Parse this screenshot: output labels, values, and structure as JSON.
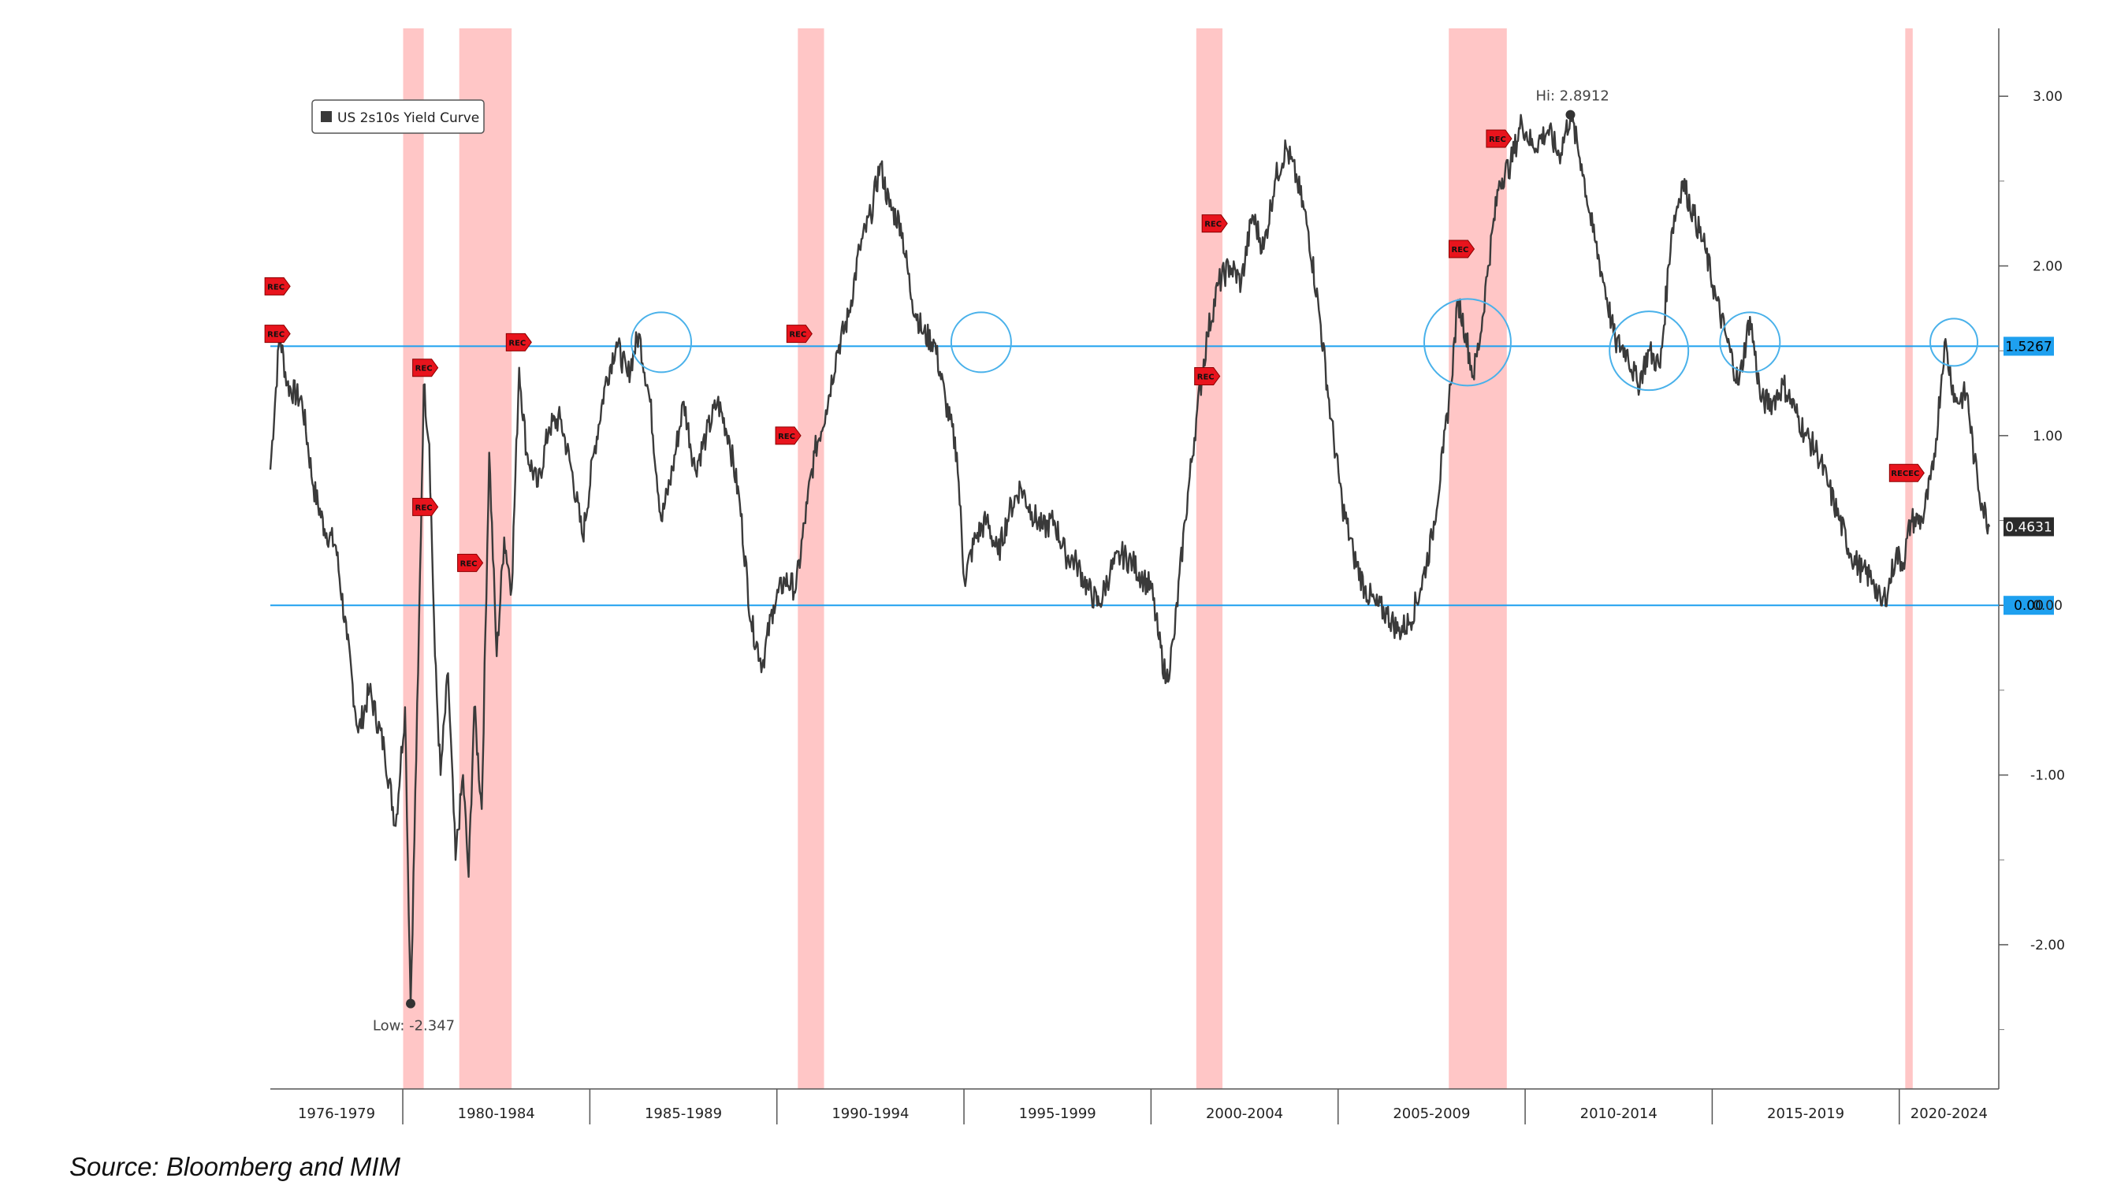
{
  "chart_data": {
    "type": "line",
    "legend": "US 2s10s Yield Curve",
    "legend_position": "top-left",
    "series": [
      {
        "name": "US 2s10s Yield Curve",
        "color": "#3a3a3a",
        "points": [
          [
            1976.45,
            0.8
          ],
          [
            1976.7,
            1.6
          ],
          [
            1976.9,
            1.3
          ],
          [
            1977.3,
            1.2
          ],
          [
            1977.6,
            0.7
          ],
          [
            1977.9,
            0.45
          ],
          [
            1978.2,
            0.35
          ],
          [
            1978.5,
            -0.2
          ],
          [
            1978.8,
            -0.75
          ],
          [
            1979.1,
            -0.5
          ],
          [
            1979.5,
            -0.85
          ],
          [
            1979.8,
            -1.3
          ],
          [
            1980.05,
            -0.6
          ],
          [
            1980.2,
            -2.347
          ],
          [
            1980.4,
            -0.4
          ],
          [
            1980.55,
            1.3
          ],
          [
            1980.7,
            0.95
          ],
          [
            1980.85,
            -0.3
          ],
          [
            1981.0,
            -1.0
          ],
          [
            1981.2,
            -0.4
          ],
          [
            1981.4,
            -1.5
          ],
          [
            1981.6,
            -1.0
          ],
          [
            1981.75,
            -1.6
          ],
          [
            1981.9,
            -0.6
          ],
          [
            1982.1,
            -1.2
          ],
          [
            1982.3,
            0.9
          ],
          [
            1982.5,
            -0.3
          ],
          [
            1982.7,
            0.4
          ],
          [
            1982.9,
            0.1
          ],
          [
            1983.1,
            1.4
          ],
          [
            1983.3,
            0.9
          ],
          [
            1983.6,
            0.7
          ],
          [
            1983.9,
            1.05
          ],
          [
            1984.2,
            1.1
          ],
          [
            1984.5,
            0.8
          ],
          [
            1984.8,
            0.4
          ],
          [
            1985.1,
            0.9
          ],
          [
            1985.4,
            1.3
          ],
          [
            1985.7,
            1.55
          ],
          [
            1986.0,
            1.35
          ],
          [
            1986.3,
            1.6
          ],
          [
            1986.6,
            1.2
          ],
          [
            1986.9,
            0.5
          ],
          [
            1987.2,
            0.8
          ],
          [
            1987.5,
            1.2
          ],
          [
            1987.8,
            0.8
          ],
          [
            1988.1,
            1.0
          ],
          [
            1988.4,
            1.2
          ],
          [
            1988.7,
            1.0
          ],
          [
            1989.0,
            0.6
          ],
          [
            1989.3,
            -0.1
          ],
          [
            1989.6,
            -0.35
          ],
          [
            1989.9,
            0.0
          ],
          [
            1990.2,
            0.15
          ],
          [
            1990.5,
            0.1
          ],
          [
            1990.8,
            0.6
          ],
          [
            1991.0,
            0.9
          ],
          [
            1991.3,
            1.15
          ],
          [
            1991.6,
            1.5
          ],
          [
            1991.9,
            1.7
          ],
          [
            1992.2,
            2.1
          ],
          [
            1992.5,
            2.3
          ],
          [
            1992.75,
            2.6
          ],
          [
            1993.0,
            2.35
          ],
          [
            1993.3,
            2.25
          ],
          [
            1993.6,
            1.8
          ],
          [
            1993.9,
            1.6
          ],
          [
            1994.2,
            1.55
          ],
          [
            1994.5,
            1.2
          ],
          [
            1994.8,
            0.9
          ],
          [
            1995.0,
            0.15
          ],
          [
            1995.3,
            0.4
          ],
          [
            1995.6,
            0.5
          ],
          [
            1995.9,
            0.3
          ],
          [
            1996.2,
            0.55
          ],
          [
            1996.5,
            0.7
          ],
          [
            1996.8,
            0.55
          ],
          [
            1997.1,
            0.45
          ],
          [
            1997.4,
            0.5
          ],
          [
            1997.7,
            0.3
          ],
          [
            1998.0,
            0.25
          ],
          [
            1998.3,
            0.1
          ],
          [
            1998.6,
            0.0
          ],
          [
            1998.9,
            0.2
          ],
          [
            1999.2,
            0.3
          ],
          [
            1999.5,
            0.25
          ],
          [
            1999.8,
            0.15
          ],
          [
            2000.0,
            0.1
          ],
          [
            2000.2,
            -0.2
          ],
          [
            2000.4,
            -0.45
          ],
          [
            2000.6,
            -0.2
          ],
          [
            2000.9,
            0.5
          ],
          [
            2001.2,
            1.1
          ],
          [
            2001.5,
            1.6
          ],
          [
            2001.8,
            1.9
          ],
          [
            2002.1,
            2.0
          ],
          [
            2002.4,
            1.9
          ],
          [
            2002.7,
            2.3
          ],
          [
            2003.0,
            2.1
          ],
          [
            2003.3,
            2.5
          ],
          [
            2003.6,
            2.7
          ],
          [
            2003.9,
            2.5
          ],
          [
            2004.2,
            2.2
          ],
          [
            2004.5,
            1.7
          ],
          [
            2004.8,
            1.1
          ],
          [
            2005.1,
            0.6
          ],
          [
            2005.4,
            0.3
          ],
          [
            2005.7,
            0.1
          ],
          [
            2006.0,
            0.0
          ],
          [
            2006.3,
            -0.05
          ],
          [
            2006.6,
            -0.15
          ],
          [
            2006.9,
            -0.1
          ],
          [
            2007.2,
            0.1
          ],
          [
            2007.5,
            0.4
          ],
          [
            2007.8,
            0.9
          ],
          [
            2008.0,
            1.3
          ],
          [
            2008.2,
            1.8
          ],
          [
            2008.4,
            1.6
          ],
          [
            2008.6,
            1.35
          ],
          [
            2008.8,
            1.6
          ],
          [
            2009.0,
            2.0
          ],
          [
            2009.3,
            2.5
          ],
          [
            2009.6,
            2.6
          ],
          [
            2009.9,
            2.85
          ],
          [
            2010.2,
            2.7
          ],
          [
            2010.6,
            2.8
          ],
          [
            2010.9,
            2.65
          ],
          [
            2011.2,
            2.89
          ],
          [
            2011.5,
            2.6
          ],
          [
            2011.8,
            2.2
          ],
          [
            2012.1,
            1.9
          ],
          [
            2012.4,
            1.55
          ],
          [
            2012.7,
            1.5
          ],
          [
            2013.0,
            1.3
          ],
          [
            2013.3,
            1.5
          ],
          [
            2013.6,
            1.4
          ],
          [
            2013.9,
            2.2
          ],
          [
            2014.2,
            2.5
          ],
          [
            2014.5,
            2.3
          ],
          [
            2014.8,
            2.1
          ],
          [
            2015.1,
            1.8
          ],
          [
            2015.4,
            1.55
          ],
          [
            2015.7,
            1.3
          ],
          [
            2016.0,
            1.7
          ],
          [
            2016.3,
            1.2
          ],
          [
            2016.6,
            1.2
          ],
          [
            2016.9,
            1.3
          ],
          [
            2017.2,
            1.15
          ],
          [
            2017.5,
            1.0
          ],
          [
            2017.8,
            0.9
          ],
          [
            2018.1,
            0.7
          ],
          [
            2018.4,
            0.5
          ],
          [
            2018.7,
            0.3
          ],
          [
            2019.0,
            0.2
          ],
          [
            2019.3,
            0.15
          ],
          [
            2019.5,
            0.0
          ],
          [
            2019.7,
            0.1
          ],
          [
            2019.9,
            0.3
          ],
          [
            2020.1,
            0.25
          ],
          [
            2020.3,
            0.5
          ],
          [
            2020.6,
            0.5
          ],
          [
            2020.9,
            0.8
          ],
          [
            2021.2,
            1.55
          ],
          [
            2021.5,
            1.2
          ],
          [
            2021.8,
            1.25
          ],
          [
            2022.0,
            0.85
          ],
          [
            2022.2,
            0.6
          ],
          [
            2022.4,
            0.4631
          ]
        ]
      }
    ],
    "y_ticks": [
      "3.00",
      "2.00",
      "1.00",
      "0.00",
      "-1.00",
      "-2.00"
    ],
    "ylim": [
      -2.85,
      3.4
    ],
    "xlim": [
      1976.45,
      2022.65
    ],
    "x_period_labels": [
      "1976-1979",
      "1980-1984",
      "1985-1989",
      "1990-1994",
      "1995-1999",
      "2000-2004",
      "2005-2009",
      "2010-2014",
      "2015-2019",
      "2020-2024"
    ],
    "x_period_separators": [
      1979.99,
      1984.99,
      1989.99,
      1994.99,
      1999.99,
      2004.99,
      2009.99,
      2014.99,
      2019.99
    ],
    "recession_bands": [
      [
        1980.0,
        1980.55
      ],
      [
        1981.5,
        1982.9
      ],
      [
        1990.55,
        1991.25
      ],
      [
        2001.2,
        2001.9
      ],
      [
        2007.95,
        2009.5
      ],
      [
        2020.15,
        2020.35
      ]
    ],
    "reference_lines": [
      {
        "value": 1.5267,
        "label": "1.5267",
        "color": "#1ea0ef"
      },
      {
        "value": 0.0,
        "label": "0.00",
        "color": "#1ea0ef"
      }
    ],
    "last_value": {
      "value": 0.4631,
      "label": "0.4631"
    },
    "annotations": [
      {
        "text": "Hi: 2.8912",
        "x": 2011.2,
        "y": 2.8912
      },
      {
        "text": "Low: -2.347",
        "x": 1980.2,
        "y": -2.347
      }
    ],
    "circles": [
      {
        "x": 1986.9,
        "y": 1.55
      },
      {
        "x": 1995.45,
        "y": 1.55
      },
      {
        "x": 2008.45,
        "y": 1.55
      },
      {
        "x": 2013.3,
        "y": 1.5
      },
      {
        "x": 2016.0,
        "y": 1.55
      },
      {
        "x": 2021.45,
        "y": 1.55
      }
    ],
    "rec_markers": [
      {
        "label": "REC",
        "x": 1976.6,
        "y": 1.88
      },
      {
        "label": "REC",
        "x": 1976.6,
        "y": 1.6
      },
      {
        "label": "REC",
        "x": 1980.55,
        "y": 1.4
      },
      {
        "label": "REC",
        "x": 1980.55,
        "y": 0.58
      },
      {
        "label": "REC",
        "x": 1983.05,
        "y": 1.55
      },
      {
        "label": "REC",
        "x": 1981.75,
        "y": 0.25
      },
      {
        "label": "REC",
        "x": 1990.55,
        "y": 1.6
      },
      {
        "label": "REC",
        "x": 1990.25,
        "y": 1.0
      },
      {
        "label": "REC",
        "x": 2001.65,
        "y": 2.25
      },
      {
        "label": "REC",
        "x": 2001.45,
        "y": 1.35
      },
      {
        "label": "REC",
        "x": 2008.25,
        "y": 2.1
      },
      {
        "label": "REC",
        "x": 2009.25,
        "y": 2.75
      },
      {
        "label": "RECEC",
        "x": 2020.15,
        "y": 0.78
      }
    ]
  },
  "source": "Source: Bloomberg and MIM"
}
